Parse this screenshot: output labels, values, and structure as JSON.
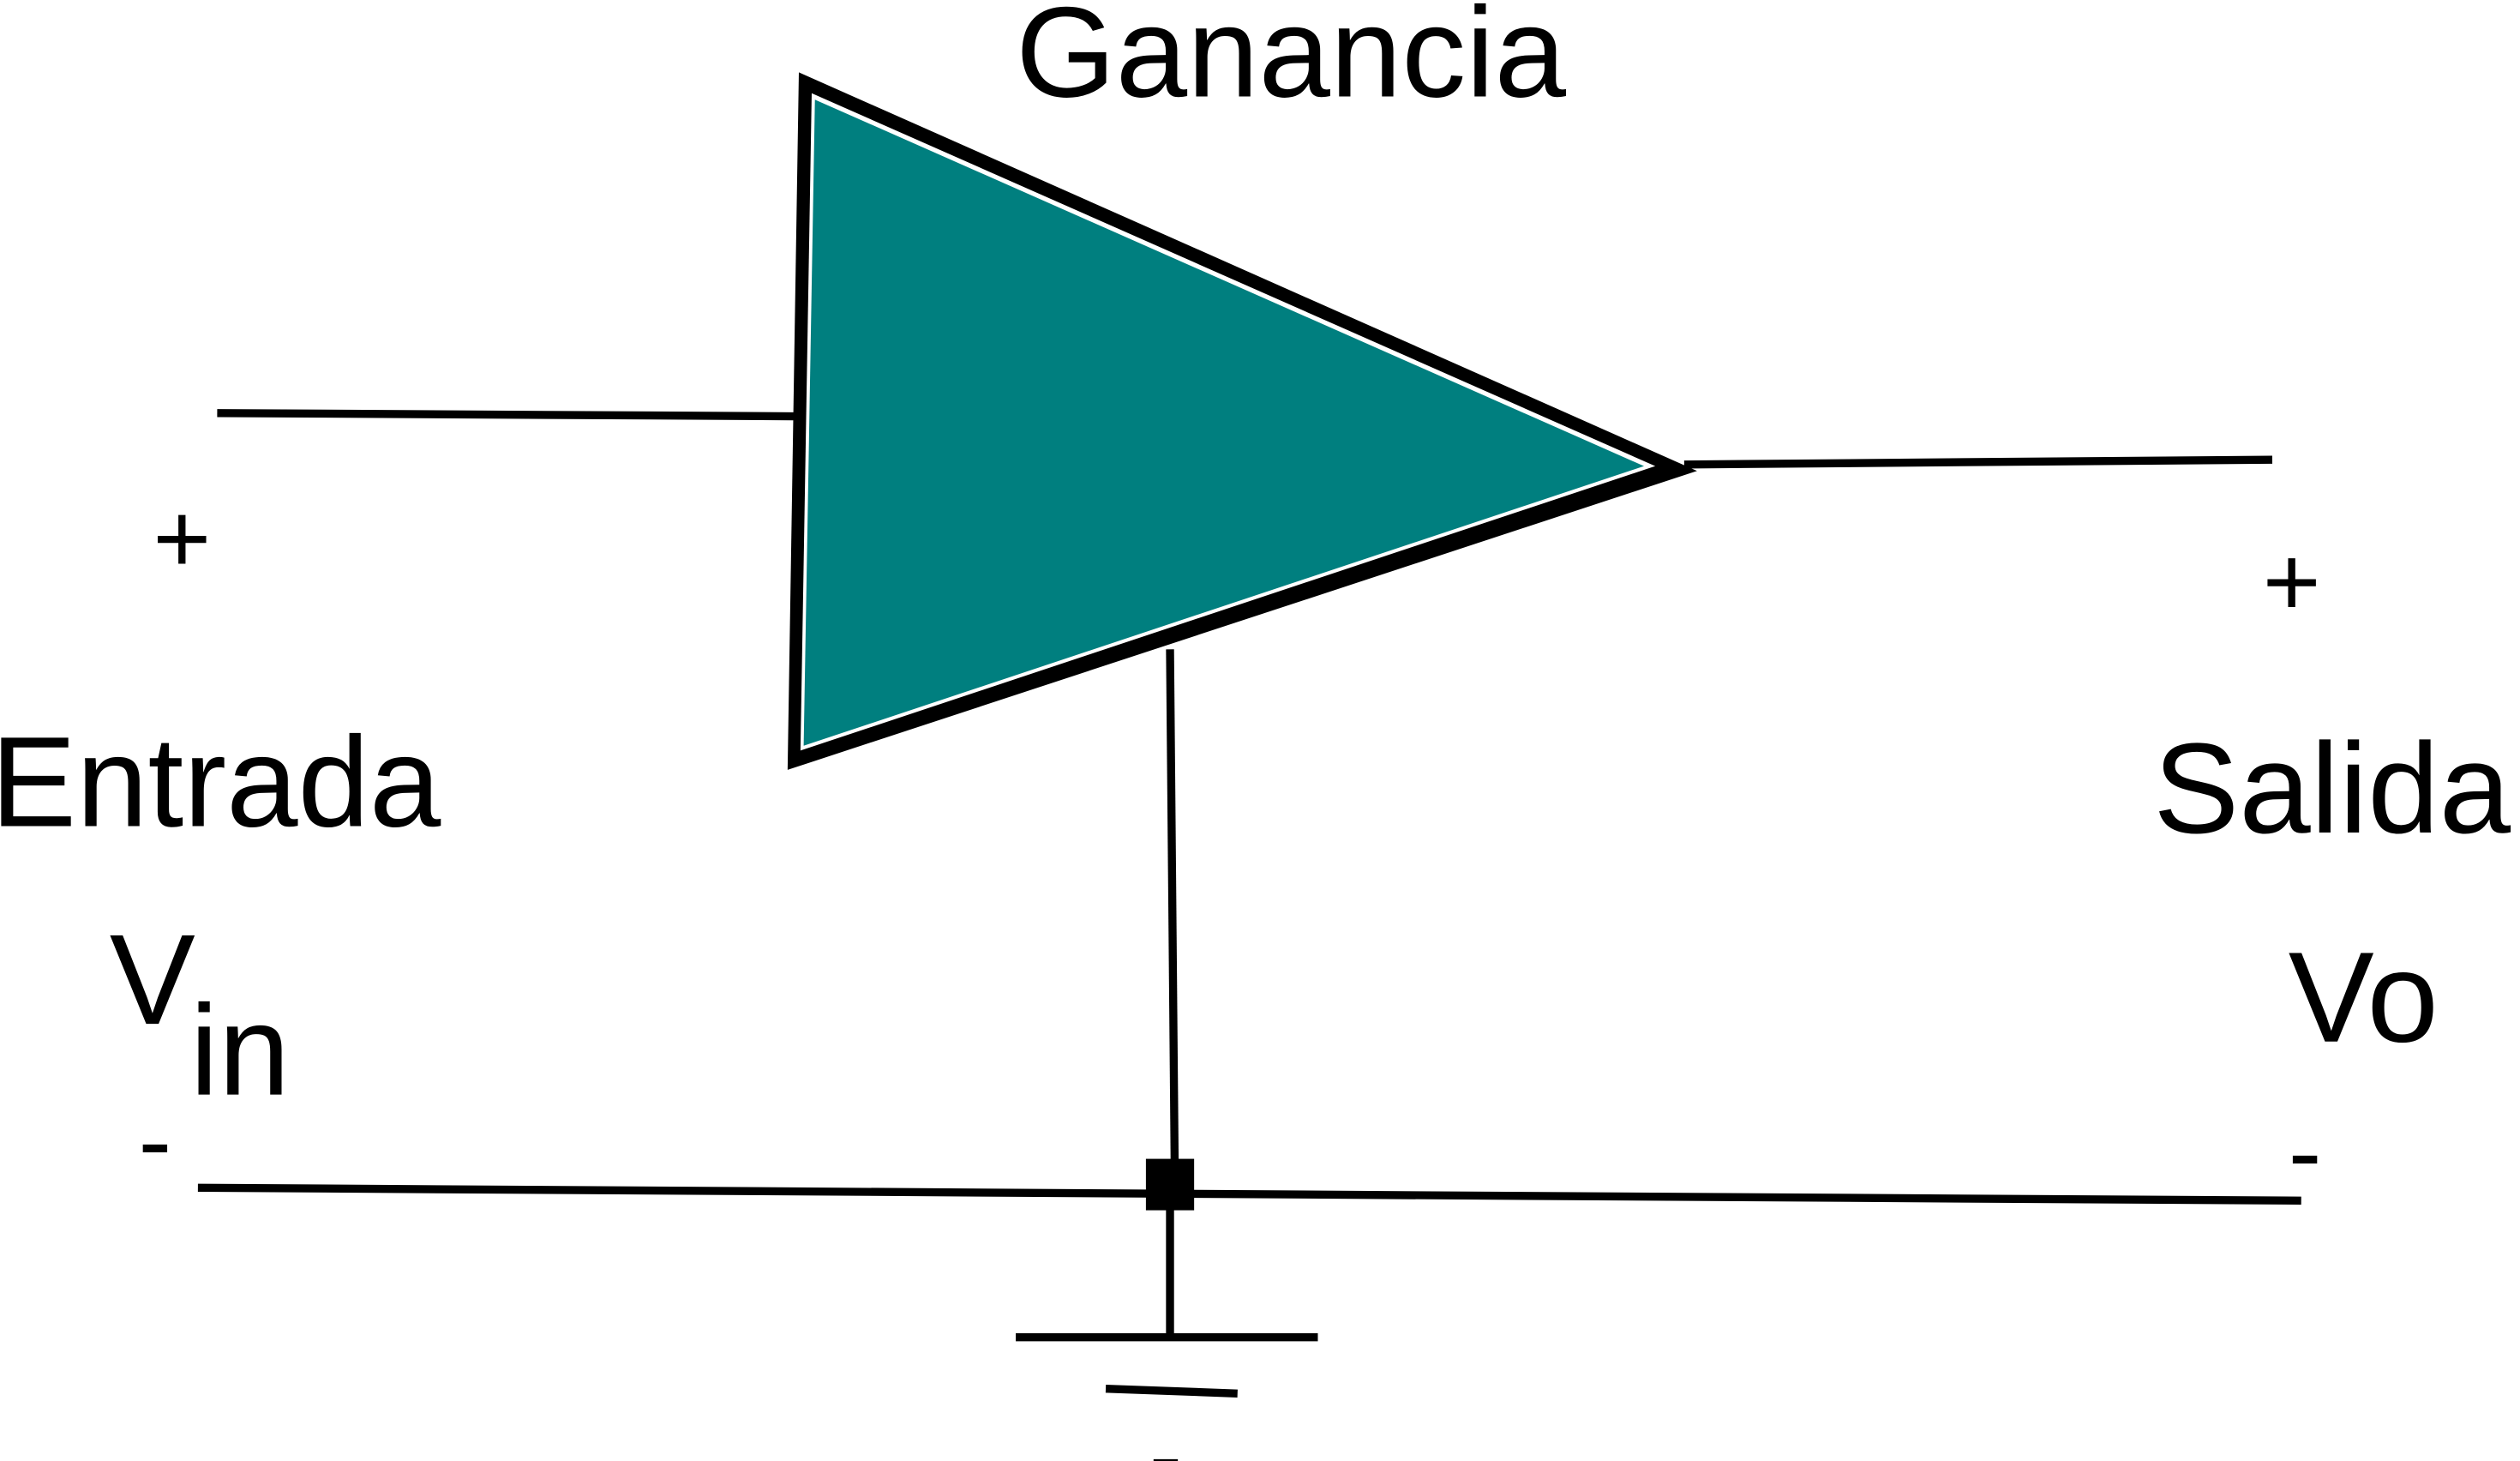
{
  "title": "Ganancia",
  "input": {
    "label": "Entrada",
    "plus": "+",
    "minus": "-",
    "voltage_symbol": "V",
    "voltage_subscript": "in"
  },
  "output": {
    "label": "Salida",
    "plus": "+",
    "minus": "-",
    "voltage_symbol": "Vo"
  },
  "ground": {
    "minus": "-"
  },
  "colors": {
    "amplifier_fill": "#007f7f",
    "stroke": "#000000",
    "background": "#ffffff"
  },
  "icons": {
    "amplifier": "triangle-amplifier-icon",
    "ground": "ground-symbol-icon",
    "junction": "junction-node-icon"
  }
}
